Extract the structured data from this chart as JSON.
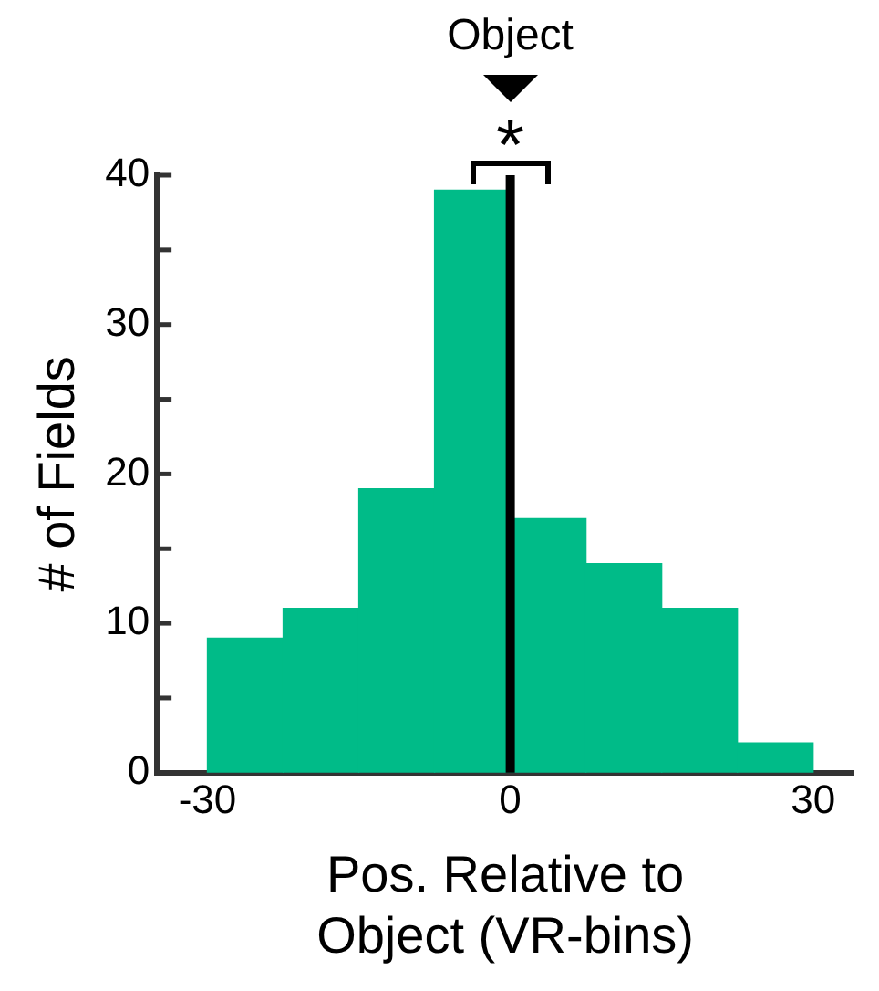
{
  "chart_data": {
    "type": "histogram",
    "xlabel": "Pos. Relative to\nObject (VR-bins)",
    "ylabel": "# of Fields",
    "bins": [
      -30,
      -22.5,
      -15,
      -7.5,
      0,
      7.5,
      15,
      22.5,
      30
    ],
    "values": [
      9,
      11,
      19,
      39,
      17,
      14,
      11,
      2
    ],
    "color": "#00bb88",
    "xlim": [
      -35,
      34
    ],
    "xticks": [
      -30,
      0,
      30
    ],
    "ylim": [
      0,
      40
    ],
    "yticks": [
      0,
      {
        "value": 5,
        "label": null
      },
      10,
      {
        "value": 15,
        "label": null
      },
      20,
      {
        "value": 25,
        "label": null
      },
      30,
      {
        "value": 35,
        "label": null
      },
      40
    ],
    "ref_lines": [
      {
        "axis": "x",
        "value": 0,
        "label": "Object",
        "color": "#000000"
      }
    ],
    "annotations": [
      "*"
    ],
    "grid": false,
    "legend": false
  }
}
